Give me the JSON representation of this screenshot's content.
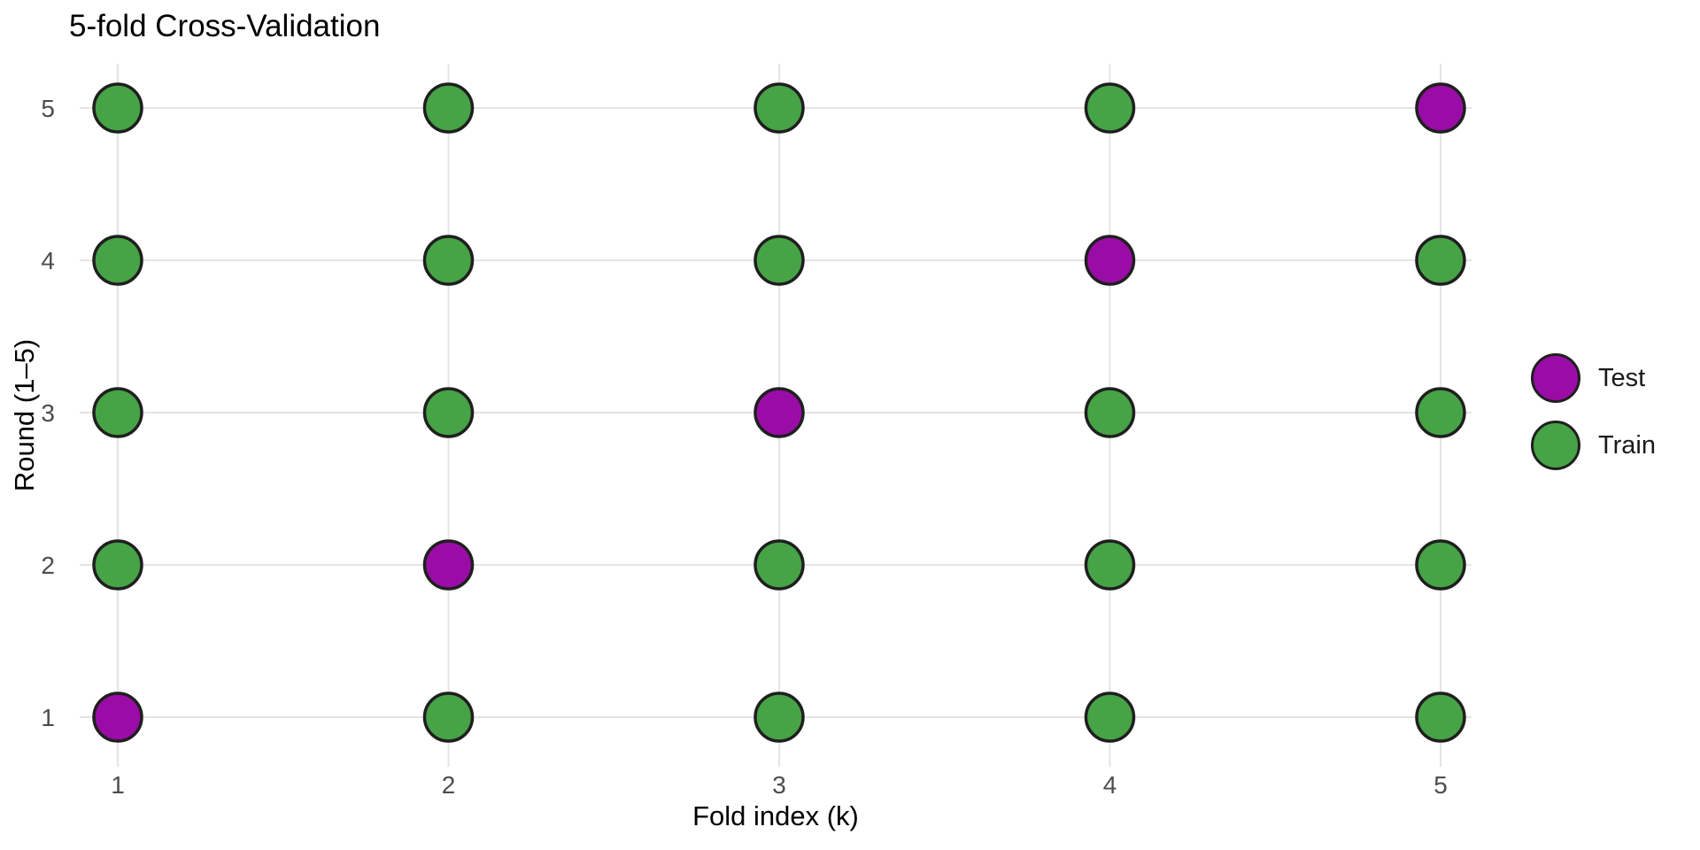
{
  "chart_data": {
    "type": "scatter",
    "title": "5-fold Cross-Validation",
    "xlabel": "Fold index (k)",
    "ylabel": "Round (1–5)",
    "x_ticks": [
      "1",
      "2",
      "3",
      "4",
      "5"
    ],
    "y_ticks": [
      "1",
      "2",
      "3",
      "4",
      "5"
    ],
    "xlim": [
      1,
      5
    ],
    "ylim": [
      1,
      5
    ],
    "grid": true,
    "legend_position": "right",
    "legend": [
      {
        "label": "Test",
        "key": "test",
        "color": "#9a0ca6"
      },
      {
        "label": "Train",
        "key": "train",
        "color": "#46a346"
      }
    ],
    "colors": {
      "test": "#9a0ca6",
      "train": "#46a346",
      "outline": "#1f1f1f",
      "grid": "#e4e4e4",
      "tick_text": "#4d4d4d",
      "text": "#000000",
      "background": "#ffffff"
    },
    "test_fold_by_round": {
      "1": 1,
      "2": 2,
      "3": 3,
      "4": 4,
      "5": 5
    },
    "points": [
      {
        "fold": 1,
        "round": 1,
        "set": "Test"
      },
      {
        "fold": 2,
        "round": 1,
        "set": "Train"
      },
      {
        "fold": 3,
        "round": 1,
        "set": "Train"
      },
      {
        "fold": 4,
        "round": 1,
        "set": "Train"
      },
      {
        "fold": 5,
        "round": 1,
        "set": "Train"
      },
      {
        "fold": 1,
        "round": 2,
        "set": "Train"
      },
      {
        "fold": 2,
        "round": 2,
        "set": "Test"
      },
      {
        "fold": 3,
        "round": 2,
        "set": "Train"
      },
      {
        "fold": 4,
        "round": 2,
        "set": "Train"
      },
      {
        "fold": 5,
        "round": 2,
        "set": "Train"
      },
      {
        "fold": 1,
        "round": 3,
        "set": "Train"
      },
      {
        "fold": 2,
        "round": 3,
        "set": "Train"
      },
      {
        "fold": 3,
        "round": 3,
        "set": "Test"
      },
      {
        "fold": 4,
        "round": 3,
        "set": "Train"
      },
      {
        "fold": 5,
        "round": 3,
        "set": "Train"
      },
      {
        "fold": 1,
        "round": 4,
        "set": "Train"
      },
      {
        "fold": 2,
        "round": 4,
        "set": "Train"
      },
      {
        "fold": 3,
        "round": 4,
        "set": "Train"
      },
      {
        "fold": 4,
        "round": 4,
        "set": "Test"
      },
      {
        "fold": 5,
        "round": 4,
        "set": "Train"
      },
      {
        "fold": 1,
        "round": 5,
        "set": "Train"
      },
      {
        "fold": 2,
        "round": 5,
        "set": "Train"
      },
      {
        "fold": 3,
        "round": 5,
        "set": "Train"
      },
      {
        "fold": 4,
        "round": 5,
        "set": "Train"
      },
      {
        "fold": 5,
        "round": 5,
        "set": "Test"
      }
    ]
  }
}
